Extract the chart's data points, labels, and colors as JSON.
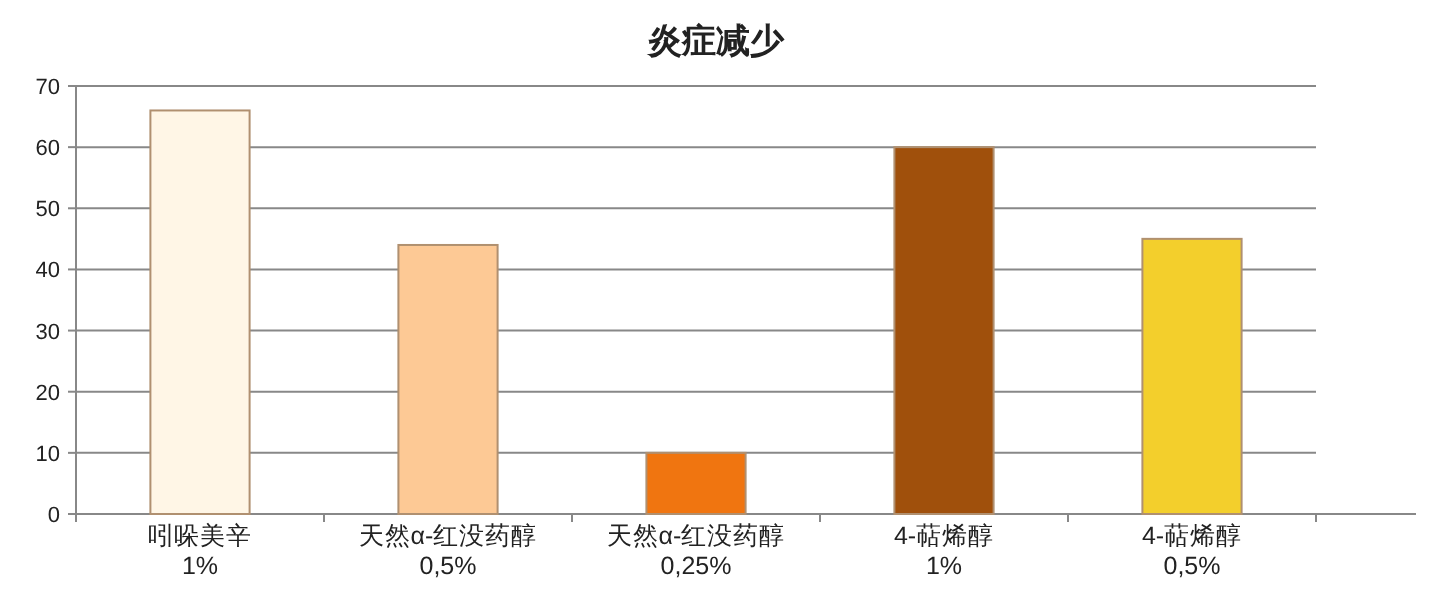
{
  "chart_data": {
    "type": "bar",
    "title": "炎症减少",
    "categories": [
      "吲哚美辛\n1%",
      "天然α-红没药醇\n0,5%",
      "天然α-红没药醇\n0,25%",
      "4-萜烯醇\n1%",
      "4-萜烯醇\n0,5%"
    ],
    "values": [
      66,
      44,
      10,
      60,
      45
    ],
    "colors": [
      "#fff6e6",
      "#fdc995",
      "#f07510",
      "#a0500c",
      "#f3cf2c"
    ],
    "ylim": [
      0,
      70
    ],
    "yticks": [
      0,
      10,
      20,
      30,
      40,
      50,
      60,
      70
    ],
    "grid": "y"
  }
}
